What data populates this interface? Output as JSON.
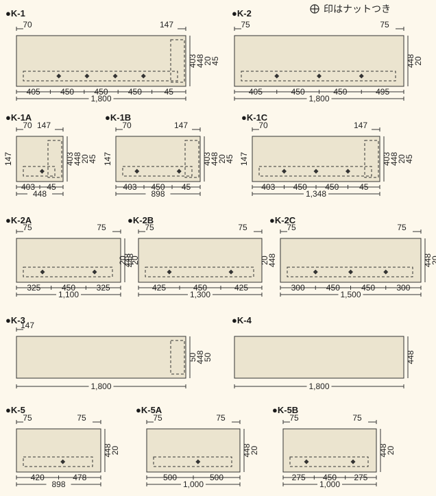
{
  "legend": {
    "text": "印はナットつき",
    "icon": "nut-symbol-icon"
  },
  "colors": {
    "panel": "#ebe4cf",
    "stroke": "#333333",
    "background": "#fdf8ec"
  },
  "panels": [
    {
      "id": "K-1",
      "name": "●K-1",
      "top": [
        "70",
        "147"
      ],
      "bottom": [
        "405",
        "450",
        "450",
        "450",
        "45"
      ],
      "total": "1,800",
      "right": [
        "403",
        "448",
        "20",
        "45"
      ],
      "left": [],
      "nuts": 4,
      "box": true
    },
    {
      "id": "K-2",
      "name": "●K-2",
      "top": [
        "75",
        "75"
      ],
      "bottom": [
        "405",
        "450",
        "450",
        "495"
      ],
      "total": "1,800",
      "right": [
        "448",
        "20"
      ],
      "left": [],
      "nuts": 3,
      "box": false
    },
    {
      "id": "K-1A",
      "name": "●K-1A",
      "top": [
        "70",
        "147"
      ],
      "bottom": [
        "403",
        "45"
      ],
      "total": "448",
      "right": [
        "403",
        "448",
        "20",
        "45"
      ],
      "left": [
        "147"
      ],
      "nuts": 1,
      "box": true
    },
    {
      "id": "K-1B",
      "name": "●K-1B",
      "top": [
        "70",
        "147"
      ],
      "bottom": [
        "403",
        "450",
        "45"
      ],
      "total": "898",
      "right": [
        "403",
        "448",
        "20",
        "45"
      ],
      "left": [
        "147"
      ],
      "nuts": 2,
      "box": true
    },
    {
      "id": "K-1C",
      "name": "●K-1C",
      "top": [
        "70",
        "147"
      ],
      "bottom": [
        "403",
        "450",
        "450",
        "45"
      ],
      "total": "1,348",
      "right": [
        "403",
        "448",
        "20",
        "45"
      ],
      "left": [
        "147"
      ],
      "nuts": 3,
      "box": true
    },
    {
      "id": "K-2A",
      "name": "●K-2A",
      "top": [
        "75",
        "75"
      ],
      "bottom": [
        "325",
        "450",
        "325"
      ],
      "total": "1,100",
      "right": [
        "448",
        "20"
      ],
      "left": [],
      "nuts": 2,
      "box": false
    },
    {
      "id": "K-2B",
      "name": "●K-2B",
      "top": [
        "75",
        "75"
      ],
      "bottom": [
        "425",
        "450",
        "425"
      ],
      "total": "1,300",
      "right": [],
      "left": [
        "448",
        "20"
      ],
      "nuts": 2,
      "box": false
    },
    {
      "id": "K-2C",
      "name": "●K-2C",
      "top": [
        "75",
        "75"
      ],
      "bottom": [
        "300",
        "450",
        "450",
        "300"
      ],
      "total": "1,500",
      "right": [
        "448",
        "20"
      ],
      "left": [
        "448",
        "20"
      ],
      "nuts": 3,
      "box": false
    },
    {
      "id": "K-3",
      "name": "●K-3",
      "top": [
        "147"
      ],
      "bottom": [],
      "total": "1,800",
      "right": [
        "50",
        "448",
        "50"
      ],
      "left": [],
      "nuts": 0,
      "box": true
    },
    {
      "id": "K-4",
      "name": "●K-4",
      "top": [],
      "bottom": [],
      "total": "1,800",
      "right": [
        "448"
      ],
      "left": [],
      "nuts": 0,
      "box": false
    },
    {
      "id": "K-5",
      "name": "●K-5",
      "top": [
        "75",
        "75"
      ],
      "bottom": [
        "420",
        "478"
      ],
      "total": "898",
      "right": [
        "448",
        "20"
      ],
      "left": [],
      "nuts": 1,
      "box": false
    },
    {
      "id": "K-5A",
      "name": "●K-5A",
      "top": [
        "75",
        "75"
      ],
      "bottom": [
        "500",
        "500"
      ],
      "total": "1,000",
      "right": [
        "448",
        "20"
      ],
      "left": [],
      "nuts": 1,
      "box": false
    },
    {
      "id": "K-5B",
      "name": "●K-5B",
      "top": [
        "75",
        "75"
      ],
      "bottom": [
        "275",
        "450",
        "275"
      ],
      "total": "1,000",
      "right": [
        "448",
        "20"
      ],
      "left": [],
      "nuts": 2,
      "box": false
    }
  ]
}
